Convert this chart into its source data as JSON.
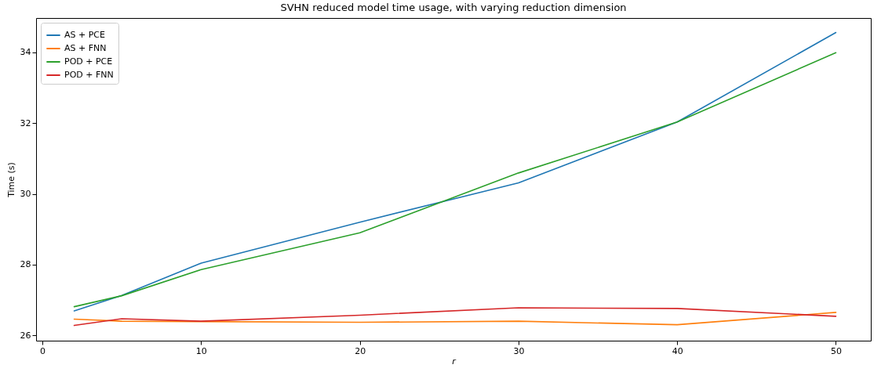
{
  "chart_data": {
    "type": "line",
    "title": "SVHN reduced model time usage, with varying reduction dimension",
    "xlabel": "r",
    "ylabel": "Time (s)",
    "x": [
      2,
      5,
      10,
      20,
      30,
      40,
      50
    ],
    "series": [
      {
        "name": "AS + PCE",
        "color": "#1f77b4",
        "values": [
          26.69,
          27.13,
          28.04,
          29.2,
          30.31,
          32.03,
          34.56
        ]
      },
      {
        "name": "AS + FNN",
        "color": "#ff7f0e",
        "values": [
          26.46,
          26.4,
          26.39,
          26.37,
          26.4,
          26.3,
          26.65
        ]
      },
      {
        "name": "POD + PCE",
        "color": "#2ca02c",
        "values": [
          26.81,
          27.12,
          27.86,
          28.9,
          30.59,
          32.03,
          33.99
        ]
      },
      {
        "name": "POD + FNN",
        "color": "#d62728",
        "values": [
          26.28,
          26.47,
          26.4,
          26.57,
          26.78,
          26.76,
          26.54
        ]
      }
    ],
    "xlim": [
      -0.4,
      52.2
    ],
    "ylim": [
      25.85,
      34.97
    ],
    "xticks": [
      0,
      10,
      20,
      30,
      40,
      50
    ],
    "yticks": [
      26,
      28,
      30,
      32,
      34
    ],
    "grid": false,
    "legend": "top left",
    "marker": "none",
    "line_style": "solid"
  }
}
